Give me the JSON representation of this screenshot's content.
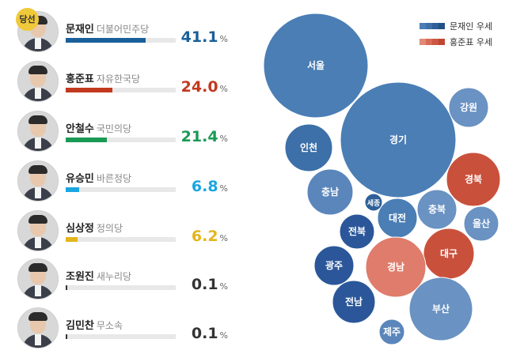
{
  "winner_badge": "당선",
  "candidates": [
    {
      "name": "문재인",
      "party": "더불어민주당",
      "percent": "41.1",
      "unit": "%",
      "share": 41.1,
      "color": "#1a5f9a",
      "winner": true
    },
    {
      "name": "홍준표",
      "party": "자유한국당",
      "percent": "24.0",
      "unit": "%",
      "share": 24.0,
      "color": "#c2391f",
      "winner": false
    },
    {
      "name": "안철수",
      "party": "국민의당",
      "percent": "21.4",
      "unit": "%",
      "share": 21.4,
      "color": "#1a9a55",
      "winner": false
    },
    {
      "name": "유승민",
      "party": "바른정당",
      "percent": "6.8",
      "unit": "%",
      "share": 6.8,
      "color": "#1aa6e0",
      "winner": false
    },
    {
      "name": "심상정",
      "party": "정의당",
      "percent": "6.2",
      "unit": "%",
      "share": 6.2,
      "color": "#e4b51c",
      "winner": false
    },
    {
      "name": "조원진",
      "party": "새누리당",
      "percent": "0.1",
      "unit": "%",
      "share": 0.1,
      "color": "#333333",
      "winner": false
    },
    {
      "name": "김민찬",
      "party": "무소속",
      "percent": "0.1",
      "unit": "%",
      "share": 0.1,
      "color": "#333333",
      "winner": false
    }
  ],
  "legend": [
    {
      "label": "문재인 우세",
      "colors": [
        "#4a7eb5",
        "#3d6fa8",
        "#2f5f98",
        "#234f86"
      ]
    },
    {
      "label": "홍준표 우세",
      "colors": [
        "#e08a78",
        "#d86a56",
        "#cc5844",
        "#bf4630"
      ]
    }
  ],
  "chart_data": {
    "type": "bubble",
    "regions": [
      {
        "name": "서울",
        "leader": "문재인",
        "color": "#4a7eb5"
      },
      {
        "name": "경기",
        "leader": "문재인",
        "color": "#4a7eb5"
      },
      {
        "name": "인천",
        "leader": "문재인",
        "color": "#3d6fa8"
      },
      {
        "name": "강원",
        "leader": "문재인",
        "color": "#6a92c2"
      },
      {
        "name": "충남",
        "leader": "문재인",
        "color": "#5a86bb"
      },
      {
        "name": "세종",
        "leader": "문재인",
        "color": "#2f5f98"
      },
      {
        "name": "대전",
        "leader": "문재인",
        "color": "#4a7eb5"
      },
      {
        "name": "충북",
        "leader": "문재인",
        "color": "#6a92c2"
      },
      {
        "name": "경북",
        "leader": "홍준표",
        "color": "#c9513c"
      },
      {
        "name": "울산",
        "leader": "문재인",
        "color": "#6a92c2"
      },
      {
        "name": "전북",
        "leader": "문재인",
        "color": "#2b579a"
      },
      {
        "name": "대구",
        "leader": "홍준표",
        "color": "#c9513c"
      },
      {
        "name": "광주",
        "leader": "문재인",
        "color": "#2b579a"
      },
      {
        "name": "경남",
        "leader": "홍준표",
        "color": "#df7c6b"
      },
      {
        "name": "전남",
        "leader": "문재인",
        "color": "#2b579a"
      },
      {
        "name": "부산",
        "leader": "문재인",
        "color": "#6a92c2"
      },
      {
        "name": "제주",
        "leader": "문재인",
        "color": "#5a86bb"
      }
    ]
  }
}
